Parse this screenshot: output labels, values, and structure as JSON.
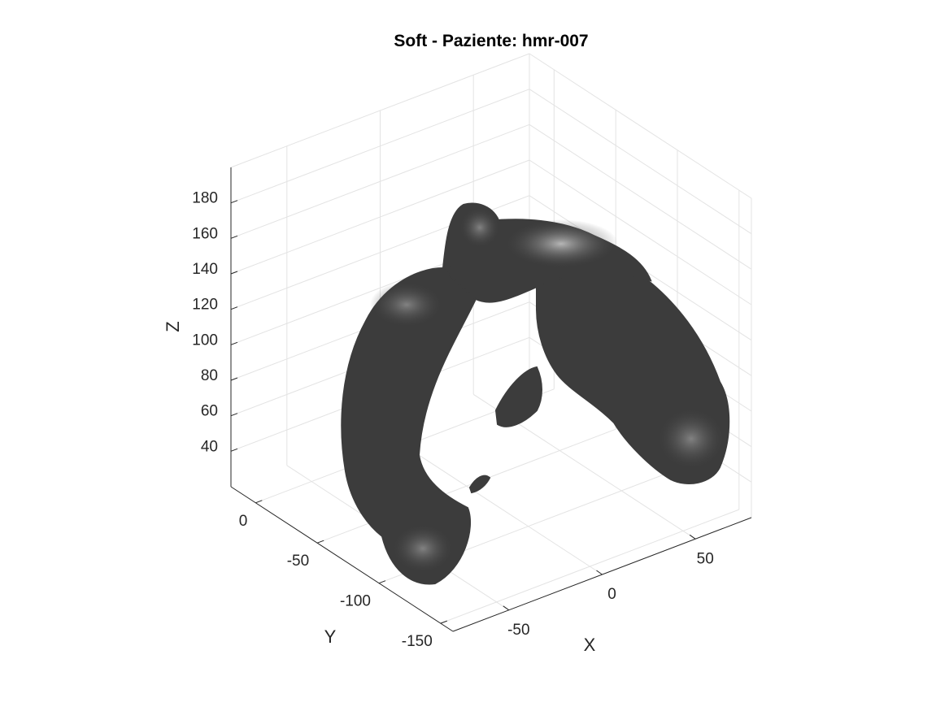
{
  "chart_data": {
    "type": "surface3d",
    "title": "Soft - Paziente: hmr-007",
    "xlabel": "X",
    "ylabel": "Y",
    "zlabel": "Z",
    "x_ticks": [
      {
        "value": -50,
        "label": "-50"
      },
      {
        "value": 0,
        "label": "0"
      },
      {
        "value": 50,
        "label": "50"
      }
    ],
    "y_ticks": [
      {
        "value": 0,
        "label": "0"
      },
      {
        "value": -50,
        "label": "-50"
      },
      {
        "value": -100,
        "label": "-100"
      },
      {
        "value": -150,
        "label": "-150"
      }
    ],
    "z_ticks": [
      {
        "value": 40,
        "label": "40"
      },
      {
        "value": 60,
        "label": "60"
      },
      {
        "value": 80,
        "label": "80"
      },
      {
        "value": 100,
        "label": "100"
      },
      {
        "value": 120,
        "label": "120"
      },
      {
        "value": 140,
        "label": "140"
      },
      {
        "value": 160,
        "label": "160"
      },
      {
        "value": 180,
        "label": "180"
      }
    ],
    "grid": true,
    "surface_color": "#3c3c3c"
  }
}
